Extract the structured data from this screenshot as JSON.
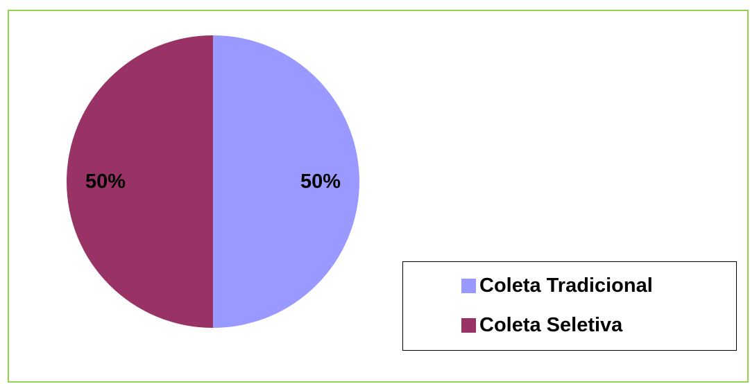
{
  "chart_data": {
    "type": "pie",
    "title": "",
    "categories": [
      "Coleta Tradicional",
      "Coleta Seletiva"
    ],
    "values": [
      50,
      50
    ],
    "labels": [
      "50%",
      "50%"
    ],
    "colors": [
      "#9999ff",
      "#993366"
    ],
    "legend": {
      "placement": "right",
      "entries": [
        "Coleta Tradicional",
        "Coleta Seletiva"
      ]
    },
    "border_color": "#92d050"
  }
}
